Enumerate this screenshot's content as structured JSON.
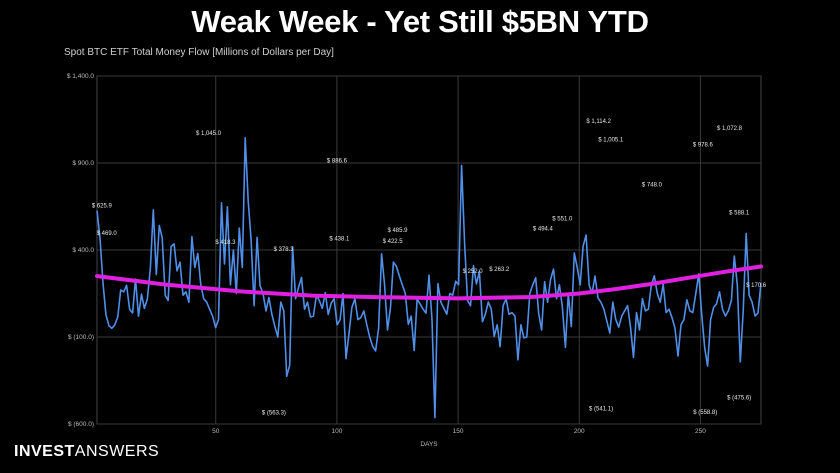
{
  "header": {
    "title": "Weak Week - Yet Still $5BN YTD"
  },
  "brand": {
    "part1": "INVEST",
    "part2": "ANSWERS"
  },
  "colors": {
    "background": "#000000",
    "line": "#4f8fe8",
    "trend": "#e020e0",
    "grid": "#3a3a3a"
  },
  "chart_data": {
    "type": "line",
    "title": "Spot BTC ETF Total Money Flow [Millions of Dollars per Day]",
    "xlabel": "DAYS",
    "ylabel": "",
    "xlim": [
      1,
      275
    ],
    "ylim": [
      -600,
      1400
    ],
    "grid": true,
    "x_ticks": [
      50,
      100,
      150,
      200,
      250
    ],
    "y_ticks": [
      {
        "value": 1400,
        "label": "$ 1,400.0"
      },
      {
        "value": 900,
        "label": "$ 900.0"
      },
      {
        "value": 400,
        "label": "$ 400.0"
      },
      {
        "value": -100,
        "label": "$ (100.0)"
      },
      {
        "value": -600,
        "label": "$ (600.0)"
      }
    ],
    "series": [
      {
        "values": [
          626,
          469,
          217,
          30,
          -35,
          -50,
          -30,
          16,
          170,
          160,
          197,
          60,
          38,
          233,
          20,
          146,
          65,
          120,
          300,
          631,
          260,
          541,
          470,
          140,
          110,
          420,
          435,
          280,
          330,
          140,
          160,
          100,
          477,
          300,
          380,
          200,
          120,
          100,
          60,
          20,
          -46,
          0,
          671,
          320,
          648,
          200,
          400,
          150,
          526,
          300,
          1045,
          683,
          460,
          80,
          473,
          196,
          150,
          50,
          127,
          30,
          -40,
          -100,
          100,
          50,
          -326,
          -262,
          418,
          120,
          186,
          242,
          60,
          100,
          15,
          20,
          140,
          110,
          65,
          155,
          30,
          94,
          120,
          -30,
          0,
          150,
          -224,
          -80,
          70,
          120,
          0,
          11,
          50,
          -30,
          -100,
          -154,
          -180,
          -50,
          378,
          206,
          -60,
          70,
          330,
          306,
          250,
          200,
          150,
          -27,
          20,
          -177,
          118,
          90,
          60,
          37,
          255,
          0,
          -563,
          207,
          100,
          66,
          31,
          150,
          140,
          220,
          200,
          886,
          438,
          110,
          80,
          310,
          205,
          277,
          -12,
          30,
          101,
          60,
          -96,
          -30,
          -156,
          80,
          120,
          30,
          40,
          20,
          -231,
          -30,
          -105,
          -100,
          150,
          200,
          240,
          35,
          -60,
          218,
          100,
          230,
          290,
          120,
          200,
          70,
          -160,
          150,
          -40,
          383,
          300,
          200,
          422,
          486,
          200,
          150,
          250,
          124,
          100,
          60,
          -10,
          -77,
          100,
          0,
          -43,
          20,
          50,
          80,
          -48,
          -218,
          40,
          -60,
          120,
          50,
          60,
          199,
          252,
          150,
          100,
          203,
          40,
          60,
          10,
          -50,
          -210,
          -30,
          0,
          114,
          50,
          40,
          150,
          263,
          30,
          -162,
          -267,
          0,
          70,
          90,
          160,
          60,
          20,
          52,
          110,
          365,
          200,
          -243,
          50,
          494,
          140,
          100,
          20,
          38,
          212
        ],
        "color": "#4f8fe8"
      }
    ],
    "trend": {
      "color": "#e020e0",
      "points": [
        [
          1,
          250
        ],
        [
          30,
          200
        ],
        [
          60,
          162
        ],
        [
          90,
          138
        ],
        [
          120,
          128
        ],
        [
          150,
          122
        ],
        [
          180,
          130
        ],
        [
          200,
          150
        ],
        [
          215,
          175
        ],
        [
          230,
          205
        ],
        [
          245,
          240
        ],
        [
          260,
          275
        ],
        [
          275,
          305
        ]
      ]
    },
    "annotations": [
      {
        "x": 3,
        "y": 626,
        "label": "$ 625.9"
      },
      {
        "x": 5,
        "y": 469,
        "label": "$ 469.0"
      },
      {
        "x": 47,
        "y": 1045,
        "label": "$ 1,045.0"
      },
      {
        "x": 54,
        "y": 418,
        "label": "$ 418.3"
      },
      {
        "x": 78,
        "y": 378,
        "label": "$ 378.3"
      },
      {
        "x": 100,
        "y": 886,
        "label": "$ 886.6"
      },
      {
        "x": 101,
        "y": 438,
        "label": "$ 438.1"
      },
      {
        "x": 74,
        "y": -563,
        "label": "$ (563.3)"
      },
      {
        "x": 125,
        "y": 486,
        "label": "$ 485.9"
      },
      {
        "x": 123,
        "y": 422,
        "label": "$ 422.5"
      },
      {
        "x": 156,
        "y": 252,
        "label": "$ 252.0"
      },
      {
        "x": 167,
        "y": 263,
        "label": "$ 263.2"
      },
      {
        "x": 193,
        "y": 551,
        "label": "$ 551.0"
      },
      {
        "x": 185,
        "y": 494,
        "label": "$ 494.4"
      },
      {
        "x": 208,
        "y": 1114,
        "label": "$ 1,114.2"
      },
      {
        "x": 213,
        "y": 1005,
        "label": "$ 1,005.1"
      },
      {
        "x": 230,
        "y": 748,
        "label": "$ 748.0"
      },
      {
        "x": 209,
        "y": -541,
        "label": "$ (541.1)"
      },
      {
        "x": 251,
        "y": 979,
        "label": "$ 978.6"
      },
      {
        "x": 262,
        "y": 1073,
        "label": "$ 1,072.8"
      },
      {
        "x": 266,
        "y": 588,
        "label": "$ 588.1"
      },
      {
        "x": 252,
        "y": -559,
        "label": "$ (558.8)"
      },
      {
        "x": 266,
        "y": -476,
        "label": "$ (475.6)"
      },
      {
        "x": 273,
        "y": 171,
        "label": "$ 170.6"
      }
    ]
  }
}
